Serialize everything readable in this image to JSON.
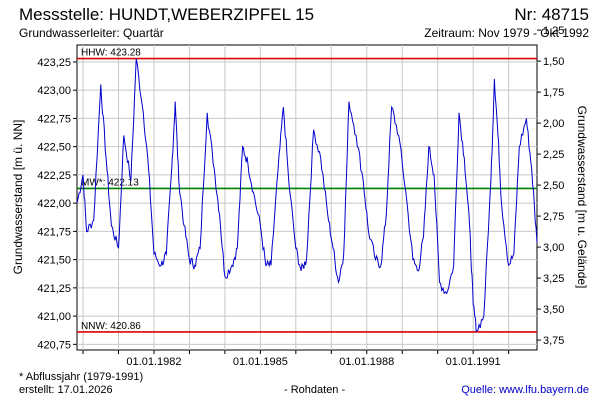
{
  "header": {
    "title": "Messstelle: HUNDT,WEBERZIPFEL 15",
    "nr": "Nr: 48715",
    "subtitle": "Grundwasserleiter: Quartär",
    "period": "Zeitraum: Nov 1979 - Okt 1992"
  },
  "footer": {
    "note": "* Abflussjahr (1979-1991)",
    "created": "erstellt:  17.01.2026",
    "raw": "- Rohdaten -",
    "source": "Quelle: www.lfu.bayern.de"
  },
  "colors": {
    "series": "#0000cc",
    "reference_low_high": "#e00000",
    "mean": "#008000",
    "frame": "#000000"
  },
  "chart_data": {
    "type": "line",
    "xlabel": "",
    "ylabel": "Grundwasserstand [m ü. NN]",
    "y2label": "Grundwasserstand [m u. Gelände]",
    "xlim": [
      1979.83,
      1992.8
    ],
    "ylim": [
      420.7,
      423.4
    ],
    "y2lim": [
      1.37,
      3.83
    ],
    "x_ticks": [
      "01.01.1982",
      "01.01.1985",
      "01.01.1988",
      "01.01.1991"
    ],
    "y_ticks": [
      "420,75",
      "421,00",
      "421,25",
      "421,50",
      "421,75",
      "422,00",
      "422,25",
      "422,50",
      "422,75",
      "423,00",
      "423,25"
    ],
    "y2_ticks": [
      "1,25",
      "1,50",
      "1,75",
      "2,00",
      "2,25",
      "2,50",
      "2,75",
      "3,00",
      "3,25",
      "3,50",
      "3,75"
    ],
    "grid": true,
    "reference_lines": [
      {
        "label": "HHW: 423.28",
        "y": 423.28,
        "kind": "high"
      },
      {
        "label": "MW*: 422.13",
        "y": 422.13,
        "kind": "mean"
      },
      {
        "label": "NNW: 420.86",
        "y": 420.86,
        "kind": "low"
      }
    ],
    "series": [
      {
        "x": [
          1979.83,
          1980.0,
          1980.1,
          1980.3,
          1980.5,
          1980.65,
          1980.8,
          1981.0,
          1981.15,
          1981.35,
          1981.5,
          1981.7,
          1981.85,
          1982.0,
          1982.2,
          1982.35,
          1982.5,
          1982.6,
          1982.7,
          1982.85,
          1983.0,
          1983.15,
          1983.3,
          1983.5,
          1983.7,
          1983.85,
          1984.0,
          1984.2,
          1984.35,
          1984.5,
          1984.65,
          1984.8,
          1985.0,
          1985.15,
          1985.3,
          1985.5,
          1985.65,
          1985.8,
          1986.0,
          1986.15,
          1986.3,
          1986.5,
          1986.7,
          1986.9,
          1987.05,
          1987.2,
          1987.35,
          1987.5,
          1987.7,
          1987.9,
          1988.05,
          1988.25,
          1988.4,
          1988.55,
          1988.7,
          1988.9,
          1989.1,
          1989.3,
          1989.45,
          1989.6,
          1989.75,
          1989.9,
          1990.05,
          1990.25,
          1990.45,
          1990.6,
          1990.75,
          1990.9,
          1991.0,
          1991.1,
          1991.3,
          1991.5,
          1991.6,
          1991.7,
          1991.8,
          1992.0,
          1992.15,
          1992.3,
          1992.5,
          1992.65,
          1992.8
        ],
        "values": [
          422.0,
          422.25,
          421.75,
          421.85,
          423.05,
          422.4,
          421.8,
          421.6,
          422.6,
          422.2,
          423.28,
          422.8,
          422.3,
          421.55,
          421.45,
          421.55,
          422.3,
          422.9,
          422.2,
          421.8,
          421.5,
          421.45,
          421.6,
          422.8,
          422.3,
          421.9,
          421.35,
          421.45,
          421.6,
          422.5,
          422.35,
          422.1,
          421.8,
          421.45,
          421.45,
          422.3,
          422.85,
          422.2,
          421.6,
          421.4,
          421.5,
          422.65,
          422.4,
          421.9,
          421.6,
          421.3,
          421.55,
          422.9,
          422.6,
          422.2,
          421.75,
          421.5,
          421.45,
          421.9,
          422.85,
          422.6,
          422.1,
          421.5,
          421.4,
          421.7,
          422.5,
          422.25,
          421.3,
          421.2,
          421.45,
          422.8,
          422.4,
          421.8,
          421.1,
          420.87,
          421.0,
          422.2,
          423.1,
          422.6,
          422.0,
          421.45,
          421.55,
          422.5,
          422.75,
          422.3,
          421.65
        ]
      }
    ]
  }
}
